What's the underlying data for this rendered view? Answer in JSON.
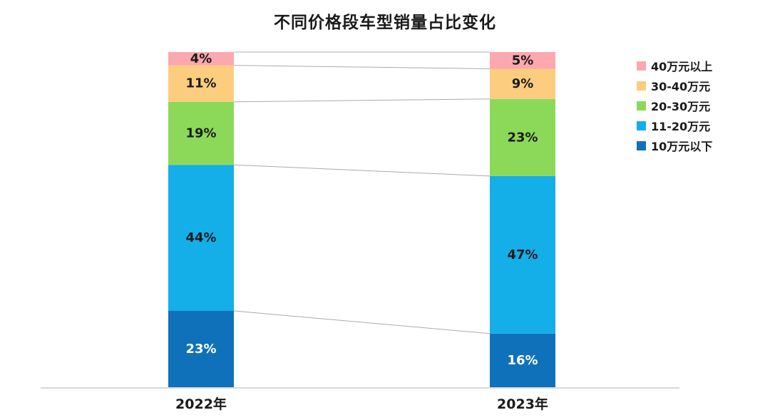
{
  "title": "不同价格段车型销量占比变化",
  "chart_data": {
    "type": "bar",
    "subtype": "stacked-100-percent-with-connectors",
    "title": "不同价格段车型销量占比变化",
    "categories": [
      "2022年",
      "2023年"
    ],
    "series": [
      {
        "name": "10万元以下",
        "values": [
          23,
          16
        ],
        "color": "#0F71B9",
        "label_color": "#FFFFFF"
      },
      {
        "name": "11-20万元",
        "values": [
          44,
          47
        ],
        "color": "#14AEE8",
        "label_color": "#1A1A1A"
      },
      {
        "name": "20-30万元",
        "values": [
          19,
          23
        ],
        "color": "#8CD95A",
        "label_color": "#1A1A1A"
      },
      {
        "name": "30-40万元",
        "values": [
          11,
          9
        ],
        "color": "#FCCC7F",
        "label_color": "#1A1A1A"
      },
      {
        "name": "40万元以上",
        "values": [
          4,
          5
        ],
        "color": "#FBA8AE",
        "label_color": "#1A1A1A"
      }
    ],
    "value_suffix": "%",
    "data_labels": {
      "2022年": [
        "23%",
        "44%",
        "19%",
        "11%",
        "4%"
      ],
      "2023年": [
        "16%",
        "47%",
        "23%",
        "9%",
        "5%"
      ]
    },
    "legend_position": "right",
    "grid": false,
    "axis_color": "#D9D9D9",
    "connector_color": "#ABABAB",
    "ylim": [
      0,
      100
    ]
  },
  "legend": {
    "items": [
      {
        "label": "40万元以上",
        "color": "#FBA8AE"
      },
      {
        "label": "30-40万元",
        "color": "#FCCC7F"
      },
      {
        "label": "20-30万元",
        "color": "#8CD95A"
      },
      {
        "label": "11-20万元",
        "color": "#14AEE8"
      },
      {
        "label": "10万元以下",
        "color": "#0F71B9"
      }
    ]
  }
}
